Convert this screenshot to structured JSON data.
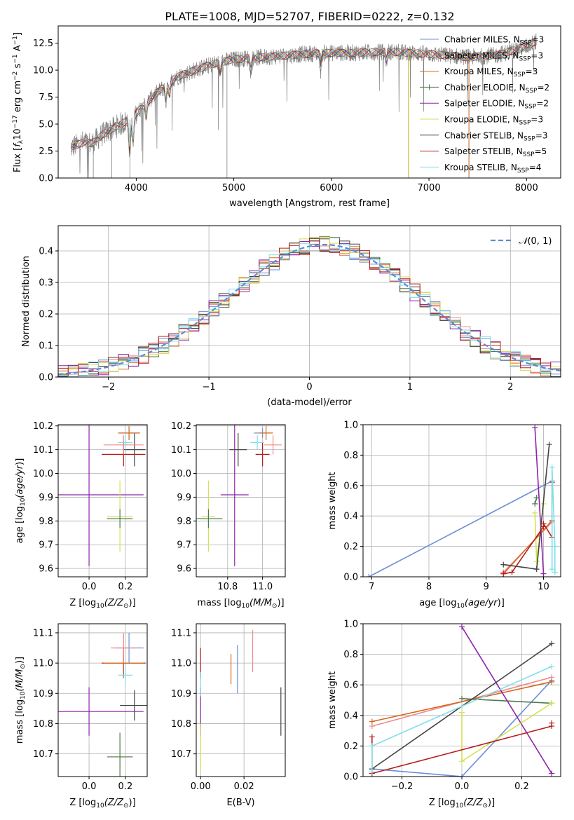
{
  "figure_title": "PLATE=1008, MJD=52707, FIBERID=0222, z=0.132",
  "colors": {
    "chabrier_miles": "#6b8fd6",
    "salpeter_miles": "#f08a8a",
    "kroupa_miles": "#d2691e",
    "chabrier_elodie": "#4f7a4f",
    "salpeter_elodie": "#8e24aa",
    "kroupa_elodie": "#d4e157",
    "chabrier_stelib": "#444444",
    "salpeter_stelib": "#b71c1c",
    "kroupa_stelib": "#80deea",
    "data": "#808080",
    "pink": "#e07bb0",
    "grid": "#b0b0b0"
  },
  "chart_data": [
    {
      "id": "spectrum",
      "type": "line",
      "title": "PLATE=1008, MJD=52707, FIBERID=0222, z=0.132",
      "xlabel": "wavelength [Angstrom, rest frame]",
      "ylabel": "Flux [f_λ 10^-17 erg cm^-2 s^-1 A^-1]",
      "xlim": [
        3200,
        8350
      ],
      "ylim": [
        0,
        14.1
      ],
      "xticks": [
        4000,
        5000,
        6000,
        7000,
        8000
      ],
      "yticks": [
        0.0,
        2.5,
        5.0,
        7.5,
        10.0,
        12.5
      ],
      "grid": false,
      "legend_position": "top-right",
      "legend": [
        "Chabrier MILES, N_SSP=3",
        "Salpeter MILES, N_SSP=3",
        "Kroupa MILES, N_SSP=3",
        "Chabrier ELODIE, N_SSP=2",
        "Salpeter ELODIE, N_SSP=2",
        "Kroupa ELODIE, N_SSP=3",
        "Chabrier STELIB, N_SSP=3",
        "Salpeter STELIB, N_SSP=5",
        "Kroupa STELIB, N_SSP=4"
      ],
      "continuum": {
        "wavelength": [
          3330,
          3450,
          3550,
          3650,
          3800,
          3950,
          4050,
          4200,
          4400,
          4600,
          4800,
          5000,
          5300,
          5600,
          5900,
          6200,
          6600,
          7000,
          7400,
          7700,
          8000,
          8100
        ],
        "flux": [
          2.8,
          3.3,
          3.2,
          4.0,
          4.8,
          5.5,
          6.5,
          7.8,
          9.3,
          10.0,
          10.6,
          11.0,
          11.2,
          11.4,
          11.6,
          11.6,
          11.7,
          11.5,
          11.2,
          11.4,
          12.2,
          12.7
        ]
      }
    },
    {
      "id": "residuals",
      "type": "histogram",
      "xlabel": "(data-model)/error",
      "ylabel": "Normed distribution",
      "xlim": [
        -2.5,
        2.5
      ],
      "ylim": [
        0,
        0.48
      ],
      "xticks": [
        -2,
        -1,
        0,
        1,
        2
      ],
      "yticks": [
        0.0,
        0.1,
        0.2,
        0.3,
        0.4
      ],
      "grid": true,
      "legend": [
        "N(0,1)"
      ],
      "legend_position": "top-right",
      "gaussian": {
        "mean": 0.15,
        "sigma": 0.95
      },
      "bins": 50
    },
    {
      "id": "age_vs_Z",
      "type": "errorbar",
      "xlabel": "Z [log10(Z/Z☉)]",
      "ylabel": "age [log10(age/yr)]",
      "xlim": [
        -0.17,
        0.32
      ],
      "ylim": [
        9.565,
        10.205
      ],
      "xticks": [
        0.0,
        0.2
      ],
      "yticks": [
        9.6,
        9.7,
        9.8,
        9.9,
        10.0,
        10.1,
        10.2
      ],
      "grid": true,
      "points": [
        {
          "series": "salpeter_elodie",
          "x": 0.0,
          "xerr": 0.3,
          "y": 9.91,
          "yerr": 0.3
        },
        {
          "series": "kroupa_elodie",
          "x": 0.17,
          "xerr": 0.07,
          "y": 9.82,
          "yerr": 0.15
        },
        {
          "series": "chabrier_elodie",
          "x": 0.17,
          "xerr": 0.07,
          "y": 9.81,
          "yerr": 0.04
        },
        {
          "series": "salpeter_stelib",
          "x": 0.19,
          "xerr": 0.12,
          "y": 10.08,
          "yerr": 0.05
        },
        {
          "series": "chabrier_stelib",
          "x": 0.25,
          "xerr": 0.06,
          "y": 10.1,
          "yerr": 0.07
        },
        {
          "series": "salpeter_miles",
          "x": 0.19,
          "xerr": 0.11,
          "y": 10.12,
          "yerr": 0.04
        },
        {
          "series": "kroupa_stelib",
          "x": 0.2,
          "xerr": 0.04,
          "y": 10.13,
          "yerr": 0.03
        },
        {
          "series": "chabrier_miles",
          "x": 0.22,
          "xerr": 0.06,
          "y": 10.17,
          "yerr": 0.02
        },
        {
          "series": "kroupa_miles",
          "x": 0.22,
          "xerr": 0.06,
          "y": 10.17,
          "yerr": 0.03
        }
      ]
    },
    {
      "id": "age_vs_mass",
      "type": "errorbar",
      "xlabel": "mass [log10(M/M☉)]",
      "ylabel": "",
      "xlim": [
        10.62,
        11.13
      ],
      "ylim": [
        9.565,
        10.205
      ],
      "xticks": [
        10.8,
        11.0
      ],
      "yticks": [
        9.6,
        9.7,
        9.8,
        9.9,
        10.0,
        10.1,
        10.2
      ],
      "grid": true,
      "points": [
        {
          "series": "salpeter_elodie",
          "x": 10.84,
          "xerr": 0.08,
          "y": 9.91,
          "yerr": 0.3
        },
        {
          "series": "kroupa_elodie",
          "x": 10.69,
          "xerr": 0.04,
          "y": 9.82,
          "yerr": 0.15
        },
        {
          "series": "chabrier_elodie",
          "x": 10.69,
          "xerr": 0.08,
          "y": 9.81,
          "yerr": 0.04
        },
        {
          "series": "salpeter_stelib",
          "x": 11.0,
          "xerr": 0.04,
          "y": 10.08,
          "yerr": 0.05
        },
        {
          "series": "chabrier_stelib",
          "x": 10.86,
          "xerr": 0.05,
          "y": 10.1,
          "yerr": 0.07
        },
        {
          "series": "salpeter_miles",
          "x": 11.06,
          "xerr": 0.05,
          "y": 10.12,
          "yerr": 0.04
        },
        {
          "series": "kroupa_stelib",
          "x": 10.97,
          "xerr": 0.04,
          "y": 10.13,
          "yerr": 0.03
        },
        {
          "series": "chabrier_miles",
          "x": 11.0,
          "xerr": 0.05,
          "y": 10.17,
          "yerr": 0.02
        },
        {
          "series": "kroupa_miles",
          "x": 11.02,
          "xerr": 0.04,
          "y": 10.17,
          "yerr": 0.03
        }
      ]
    },
    {
      "id": "weight_vs_age",
      "type": "line",
      "xlabel": "age [log10(age/yr)]",
      "ylabel": "mass weight",
      "xlim": [
        6.85,
        10.3
      ],
      "ylim": [
        0,
        1.0
      ],
      "xticks": [
        7,
        8,
        9,
        10
      ],
      "yticks": [
        0.0,
        0.2,
        0.4,
        0.6,
        0.8,
        1.0
      ],
      "grid": true,
      "series": [
        {
          "name": "chabrier_miles",
          "x": [
            6.95,
            10.15
          ],
          "y": [
            0.0,
            0.63
          ]
        },
        {
          "name": "salpeter_miles",
          "x": [
            9.3,
            10.15,
            10.15
          ],
          "y": [
            0.03,
            0.36,
            0.62
          ]
        },
        {
          "name": "kroupa_miles",
          "x": [
            9.3,
            10.15,
            10.15
          ],
          "y": [
            0.02,
            0.37,
            0.62
          ]
        },
        {
          "name": "chabrier_elodie",
          "x": [
            9.85,
            9.88
          ],
          "y": [
            0.48,
            0.52
          ]
        },
        {
          "name": "salpeter_elodie",
          "x": [
            9.85,
            10.0
          ],
          "y": [
            0.98,
            0.02
          ]
        },
        {
          "name": "kroupa_elodie",
          "x": [
            9.85,
            9.88,
            10.0
          ],
          "y": [
            0.42,
            0.1,
            0.48
          ]
        },
        {
          "name": "chabrier_stelib",
          "x": [
            9.3,
            9.88,
            10.1
          ],
          "y": [
            0.08,
            0.05,
            0.87
          ]
        },
        {
          "name": "salpeter_stelib",
          "x": [
            9.3,
            9.45,
            10.0,
            10.0,
            10.15
          ],
          "y": [
            0.02,
            0.03,
            0.33,
            0.35,
            0.26
          ]
        },
        {
          "name": "kroupa_stelib",
          "x": [
            10.15,
            10.15,
            10.2,
            10.2
          ],
          "y": [
            0.05,
            0.72,
            0.2,
            0.03
          ]
        }
      ]
    },
    {
      "id": "mass_vs_Z",
      "type": "errorbar",
      "xlabel": "Z [log10(Z/Z☉)]",
      "ylabel": "mass [log10(M/M☉)]",
      "xlim": [
        -0.17,
        0.32
      ],
      "ylim": [
        10.625,
        11.13
      ],
      "xticks": [
        0.0,
        0.2
      ],
      "yticks": [
        10.7,
        10.8,
        10.9,
        11.0,
        11.1
      ],
      "grid": true,
      "points": [
        {
          "series": "salpeter_elodie",
          "x": 0.0,
          "xerr": 0.3,
          "y": 10.84,
          "yerr": 0.08
        },
        {
          "series": "kroupa_elodie",
          "x": 0.17,
          "xerr": 0.07,
          "y": 10.69,
          "yerr": 0.04
        },
        {
          "series": "chabrier_elodie",
          "x": 0.17,
          "xerr": 0.07,
          "y": 10.69,
          "yerr": 0.08
        },
        {
          "series": "chabrier_stelib",
          "x": 0.25,
          "xerr": 0.08,
          "y": 10.86,
          "yerr": 0.05
        },
        {
          "series": "salpeter_stelib",
          "x": 0.19,
          "xerr": 0.12,
          "y": 11.0,
          "yerr": 0.04
        },
        {
          "series": "kroupa_miles",
          "x": 0.19,
          "xerr": 0.11,
          "y": 11.0,
          "yerr": 0.05
        },
        {
          "series": "kroupa_stelib",
          "x": 0.2,
          "xerr": 0.04,
          "y": 10.96,
          "yerr": 0.03
        },
        {
          "series": "chabrier_miles",
          "x": 0.22,
          "xerr": 0.08,
          "y": 11.05,
          "yerr": 0.05
        },
        {
          "series": "salpeter_miles",
          "x": 0.19,
          "xerr": 0.07,
          "y": 11.05,
          "yerr": 0.05
        }
      ]
    },
    {
      "id": "mass_vs_ebv",
      "type": "errorbar",
      "xlabel": "E(B-V)",
      "ylabel": "",
      "xlim": [
        -0.002,
        0.039
      ],
      "ylim": [
        10.625,
        11.13
      ],
      "xticks": [
        0.0,
        0.02
      ],
      "yticks": [
        10.7,
        10.8,
        10.9,
        11.0,
        11.1
      ],
      "grid": true,
      "points": [
        {
          "series": "salpeter_elodie",
          "x": 0.0,
          "xerr": 0.0,
          "y": 10.84,
          "yerr": 0.08
        },
        {
          "series": "kroupa_elodie",
          "x": 0.0,
          "xerr": 0.0,
          "y": 10.72,
          "yerr": 0.08
        },
        {
          "series": "salpeter_stelib",
          "x": 0.0,
          "xerr": 0.0,
          "y": 11.0,
          "yerr": 0.05
        },
        {
          "series": "kroupa_stelib",
          "x": 0.0,
          "xerr": 0.0,
          "y": 10.93,
          "yerr": 0.04
        },
        {
          "series": "kroupa_miles",
          "x": 0.014,
          "xerr": 0.0,
          "y": 10.98,
          "yerr": 0.05
        },
        {
          "series": "chabrier_miles",
          "x": 0.017,
          "xerr": 0.0,
          "y": 10.98,
          "yerr": 0.08
        },
        {
          "series": "salpeter_miles",
          "x": 0.024,
          "xerr": 0.0,
          "y": 11.04,
          "yerr": 0.07
        },
        {
          "series": "chabrier_stelib",
          "x": 0.037,
          "xerr": 0.0,
          "y": 10.84,
          "yerr": 0.08
        }
      ]
    },
    {
      "id": "weight_vs_Z",
      "type": "line",
      "xlabel": "Z [log10(Z/Z☉)]",
      "ylabel": "mass weight",
      "xlim": [
        -0.33,
        0.33
      ],
      "ylim": [
        0,
        1.0
      ],
      "xticks": [
        -0.2,
        0.0,
        0.2
      ],
      "yticks": [
        0.0,
        0.2,
        0.4,
        0.6,
        0.8,
        1.0
      ],
      "grid": true,
      "series": [
        {
          "name": "chabrier_miles",
          "x": [
            -0.3,
            0.0,
            0.3
          ],
          "y": [
            0.05,
            0.0,
            0.63
          ]
        },
        {
          "name": "salpeter_miles",
          "x": [
            -0.3,
            0.3
          ],
          "y": [
            0.33,
            0.65
          ]
        },
        {
          "name": "kroupa_miles",
          "x": [
            -0.3,
            0.3
          ],
          "y": [
            0.36,
            0.62
          ]
        },
        {
          "name": "chabrier_elodie",
          "x": [
            0.0,
            0.3
          ],
          "y": [
            0.51,
            0.48
          ]
        },
        {
          "name": "salpeter_elodie",
          "x": [
            0.0,
            0.3
          ],
          "y": [
            0.98,
            0.02
          ]
        },
        {
          "name": "kroupa_elodie",
          "x": [
            0.0,
            0.0,
            0.3
          ],
          "y": [
            0.42,
            0.1,
            0.48
          ]
        },
        {
          "name": "chabrier_stelib",
          "x": [
            -0.3,
            0.3
          ],
          "y": [
            0.05,
            0.87
          ]
        },
        {
          "name": "salpeter_stelib",
          "x": [
            -0.3,
            -0.3,
            0.3,
            0.3
          ],
          "y": [
            0.26,
            0.02,
            0.33,
            0.35
          ]
        },
        {
          "name": "kroupa_stelib",
          "x": [
            -0.3,
            -0.3,
            0.3
          ],
          "y": [
            0.03,
            0.2,
            0.72
          ]
        }
      ]
    }
  ]
}
